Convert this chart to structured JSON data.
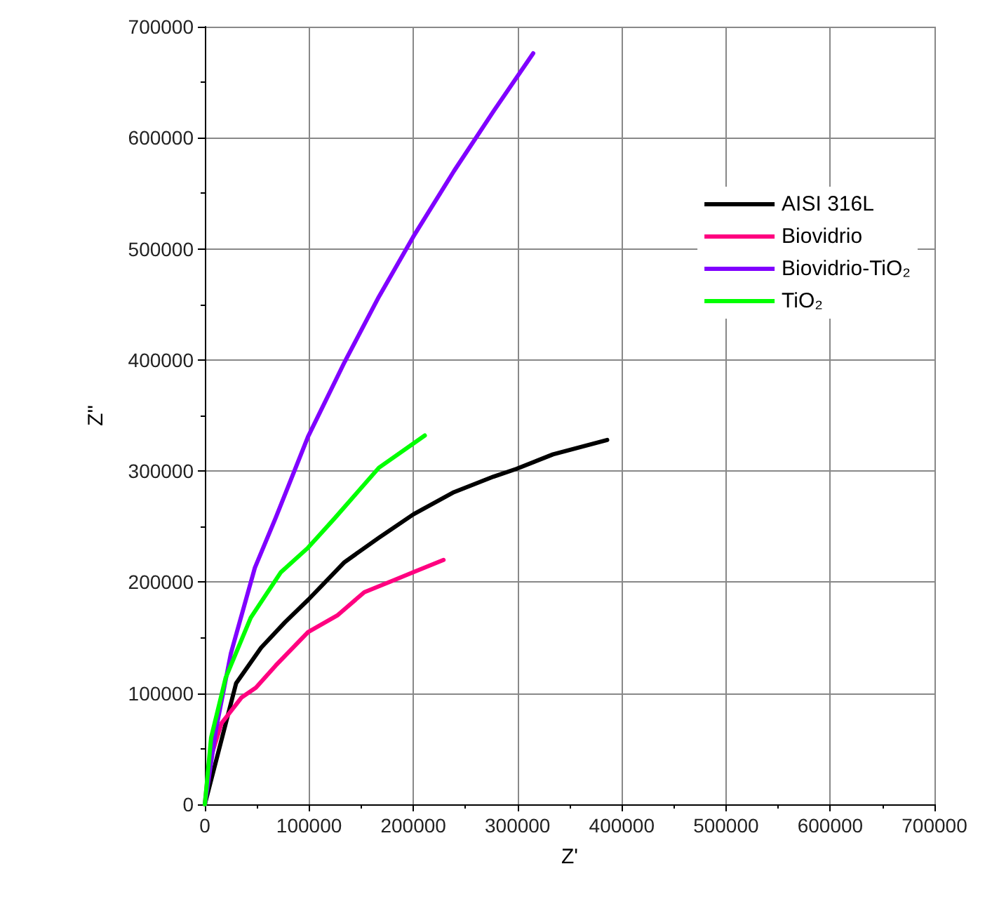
{
  "chart_data": {
    "type": "line",
    "xlabel": "Z'",
    "ylabel": "Z''",
    "xlim": [
      0,
      700000
    ],
    "xticks": [
      0,
      100000,
      200000,
      300000,
      400000,
      500000,
      600000,
      700000
    ],
    "ylim": [
      0,
      700000
    ],
    "yticks": [
      0,
      100000,
      200000,
      300000,
      400000,
      500000,
      600000,
      700000
    ],
    "grid": true,
    "legend": "top right",
    "marker": "none",
    "line_style": "solid",
    "series": [
      {
        "name": "AISI 316L",
        "color": "#000000",
        "x": [
          0,
          30000,
          54000,
          77000,
          99000,
          134000,
          167000,
          200000,
          239000,
          277000,
          299000,
          334000,
          386000
        ],
        "values": [
          0,
          109000,
          141000,
          164000,
          184000,
          218000,
          240000,
          261000,
          281000,
          295000,
          302000,
          315000,
          328000
        ]
      },
      {
        "name": "Biovidrio",
        "color": "#ff0080",
        "x": [
          0,
          4000,
          16000,
          35000,
          49000,
          68000,
          99000,
          127000,
          153000,
          182000,
          200000,
          229000
        ],
        "values": [
          0,
          37000,
          73000,
          96000,
          105000,
          125000,
          155000,
          170000,
          191000,
          202000,
          209000,
          220000
        ]
      },
      {
        "name": "Biovidrio-TiO₂",
        "color": "#8000ff",
        "x": [
          0,
          11000,
          25000,
          48000,
          68000,
          99000,
          134000,
          167000,
          200000,
          239000,
          277000,
          315000
        ],
        "values": [
          0,
          69000,
          136000,
          213000,
          258000,
          331000,
          398000,
          457000,
          511000,
          570000,
          624000,
          676000
        ]
      },
      {
        "name": "TiO₂",
        "color": "#00ff00",
        "x": [
          0,
          6000,
          20000,
          44000,
          73000,
          99000,
          125000,
          167000,
          211000
        ],
        "values": [
          0,
          60000,
          114000,
          168000,
          209000,
          231000,
          258000,
          303000,
          332000
        ]
      }
    ]
  }
}
